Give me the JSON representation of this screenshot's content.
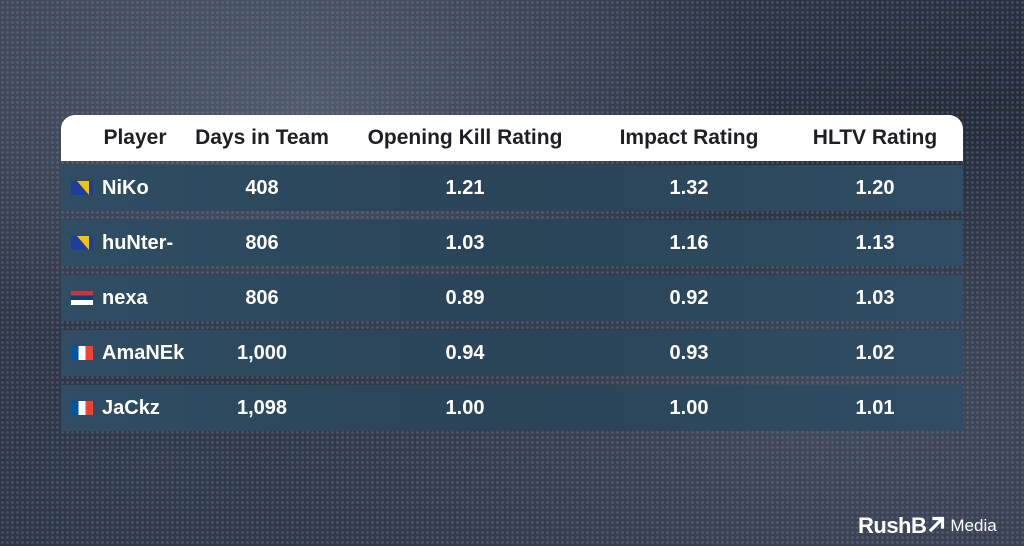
{
  "table": {
    "headers": {
      "player": "Player",
      "days": "Days in Team",
      "okr": "Opening Kill Rating",
      "impact": "Impact Rating",
      "hltv": "HLTV Rating"
    },
    "rows": [
      {
        "flag": "bosnia-flag-icon",
        "player": "NiKo",
        "days": "408",
        "okr": "1.21",
        "impact": "1.32",
        "hltv": "1.20"
      },
      {
        "flag": "bosnia-flag-icon",
        "player": "huNter-",
        "days": "806",
        "okr": "1.03",
        "impact": "1.16",
        "hltv": "1.13"
      },
      {
        "flag": "serbia-flag-icon",
        "player": "nexa",
        "days": "806",
        "okr": "0.89",
        "impact": "0.92",
        "hltv": "1.03"
      },
      {
        "flag": "france-flag-icon",
        "player": "AmaNEk",
        "days": "1,000",
        "okr": "0.94",
        "impact": "0.93",
        "hltv": "1.02"
      },
      {
        "flag": "france-flag-icon",
        "player": "JaCkz",
        "days": "1,098",
        "okr": "1.00",
        "impact": "1.00",
        "hltv": "1.01"
      }
    ]
  },
  "brand": {
    "name": "RushB",
    "sub": "Media",
    "icon": "arrow-up-right-icon"
  }
}
